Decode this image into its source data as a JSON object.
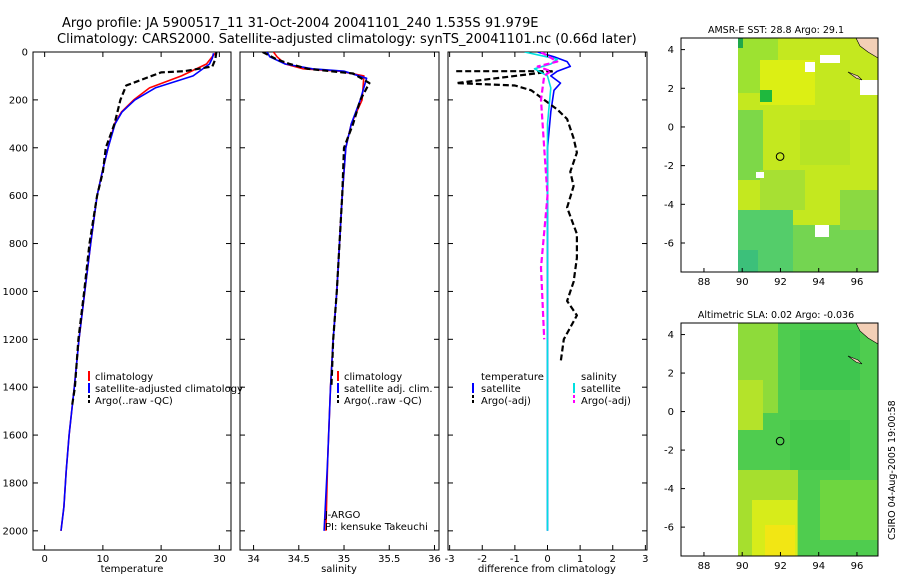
{
  "title_line1": "Argo profile: JA 5900517_11 31-Oct-2004 20041101_240 1.535S 91.979E",
  "title_line2": "Climatology: CARS2000. Satellite-adjusted climatology: synTS_20041101.nc (0.66d later)",
  "side_stamp": "CSIRO 04-Aug-2005 19:00:58",
  "colors": {
    "climatology": "#ff0000",
    "satellite": "#0000ff",
    "argo": "#000000",
    "salinity_cyan": "#00e0e0",
    "salinity_magenta": "#ff00ff"
  },
  "chart_data": [
    {
      "type": "line",
      "title": "",
      "xlabel": "temperature",
      "ylabel": "",
      "xlim": [
        -2,
        32
      ],
      "ylim": [
        2080,
        0
      ],
      "xticks": [
        "0",
        "10",
        "20",
        "30"
      ],
      "xtick_values": [
        0,
        10,
        20,
        30
      ],
      "yticks": [
        "0",
        "200",
        "400",
        "600",
        "800",
        "1000",
        "1200",
        "1400",
        "1600",
        "1800",
        "2000"
      ],
      "ytick_values": [
        0,
        200,
        400,
        600,
        800,
        1000,
        1200,
        1400,
        1600,
        1800,
        2000
      ],
      "legend": {
        "position": "lower-right",
        "entries": [
          "climatology",
          "satellite-adjusted climatology",
          "Argo(..raw -QC)"
        ]
      },
      "series": [
        {
          "name": "climatology",
          "color": "#ff0000",
          "dash": "solid",
          "x": [
            29.3,
            28.6,
            27.8,
            23.5,
            18.0,
            15.3,
            13.2,
            12.0,
            10.9,
            9.9,
            9.0,
            7.9,
            6.9,
            5.9,
            5.1,
            4.2,
            3.7,
            3.3,
            2.8
          ],
          "y": [
            5,
            25,
            50,
            100,
            150,
            200,
            250,
            300,
            400,
            500,
            600,
            800,
            1000,
            1200,
            1400,
            1600,
            1750,
            1900,
            2000
          ]
        },
        {
          "name": "satellite-adjusted climatology",
          "color": "#0000ff",
          "dash": "solid",
          "x": [
            29.0,
            28.8,
            28.3,
            25.5,
            19.0,
            15.5,
            13.3,
            12.1,
            10.9,
            9.9,
            9.0,
            7.9,
            6.9,
            5.9,
            5.1,
            4.2,
            3.7,
            3.3,
            2.8
          ],
          "y": [
            5,
            25,
            50,
            100,
            150,
            200,
            250,
            300,
            400,
            500,
            600,
            800,
            1000,
            1200,
            1400,
            1600,
            1750,
            1900,
            2000
          ]
        },
        {
          "name": "Argo(..raw -QC)",
          "color": "#000000",
          "dash": "dashed",
          "x": [
            29.5,
            29.3,
            28.8,
            24.0,
            20.0,
            14.0,
            13.0,
            12.0,
            10.5,
            10.0,
            9.0,
            7.7,
            6.8,
            5.8,
            5.2,
            4.7
          ],
          "y": [
            0,
            30,
            60,
            80,
            85,
            140,
            200,
            300,
            400,
            500,
            600,
            800,
            1000,
            1200,
            1400,
            1480
          ]
        }
      ]
    },
    {
      "type": "line",
      "title": "",
      "xlabel": "salinity",
      "ylabel": "",
      "xlim": [
        33.85,
        36.05
      ],
      "ylim": [
        2080,
        0
      ],
      "xticks": [
        "34",
        "34.5",
        "35",
        "35.5",
        "36"
      ],
      "xtick_values": [
        34,
        34.5,
        35,
        35.5,
        36
      ],
      "legend": {
        "position": "lower-right",
        "entries": [
          "climatology",
          "satellite adj. clim.",
          "Argo(..raw -QC)"
        ]
      },
      "annotations": [
        "J-ARGO",
        "PI: kensuke Takeuchi"
      ],
      "series": [
        {
          "name": "climatology",
          "color": "#ff0000",
          "dash": "solid",
          "x": [
            34.22,
            34.26,
            34.35,
            34.55,
            34.95,
            35.22,
            35.2,
            35.08,
            35.02,
            35.0,
            34.98,
            34.95,
            34.92,
            34.88,
            34.85,
            34.82,
            34.8
          ],
          "y": [
            0,
            20,
            50,
            70,
            80,
            100,
            200,
            300,
            400,
            500,
            600,
            800,
            1000,
            1200,
            1400,
            1700,
            2000
          ]
        },
        {
          "name": "satellite adj. clim.",
          "color": "#0000ff",
          "dash": "solid",
          "x": [
            34.15,
            34.18,
            34.35,
            34.65,
            35.0,
            35.25,
            35.18,
            35.08,
            35.02,
            35.0,
            34.98,
            34.95,
            34.92,
            34.88,
            34.85,
            34.82,
            34.78
          ],
          "y": [
            0,
            20,
            50,
            70,
            80,
            110,
            200,
            300,
            400,
            500,
            600,
            800,
            1000,
            1200,
            1400,
            1700,
            2000
          ]
        },
        {
          "name": "Argo(..raw -QC)",
          "color": "#000000",
          "dash": "dashed",
          "x": [
            34.1,
            34.25,
            34.4,
            34.6,
            35.1,
            35.28,
            35.18,
            35.1,
            35.0,
            34.98,
            34.95,
            34.92,
            34.88,
            34.86
          ],
          "y": [
            0,
            30,
            50,
            70,
            90,
            130,
            200,
            300,
            400,
            600,
            800,
            1000,
            1200,
            1400
          ]
        }
      ]
    },
    {
      "type": "line",
      "title": "",
      "xlabel": "difference from climatology",
      "ylabel": "",
      "xlim": [
        -3.05,
        3.05
      ],
      "ylim": [
        2080,
        0
      ],
      "xticks": [
        "-3",
        "-2",
        "-1",
        "0",
        "1",
        "2",
        "3"
      ],
      "xtick_values": [
        -3,
        -2,
        -1,
        0,
        1,
        2,
        3
      ],
      "legend": {
        "position": "lower-center",
        "entries": [
          "temperature",
          "satellite",
          "Argo(-adj)",
          "salinity",
          "satellite",
          "Argo(-adj)"
        ]
      },
      "series": [
        {
          "name": "temperature satellite",
          "color": "#0000ff",
          "dash": "solid",
          "x": [
            -0.3,
            0.2,
            0.6,
            0.7,
            0.3,
            0.1,
            0.4,
            0.2,
            0.1,
            0.0,
            0.0,
            0.0,
            0.0,
            0.0,
            0.0
          ],
          "y": [
            0,
            20,
            40,
            60,
            80,
            100,
            130,
            160,
            250,
            400,
            600,
            1000,
            1400,
            1700,
            2000
          ]
        },
        {
          "name": "temperature Argo(-adj)",
          "color": "#000000",
          "dash": "dashed",
          "x": [
            -2.8,
            0.2,
            -2.8,
            -1.0,
            -0.5,
            0.3,
            0.6,
            0.8,
            0.9,
            0.7,
            0.8,
            0.6,
            0.9,
            0.9,
            0.8,
            0.6,
            0.9,
            0.5,
            0.4
          ],
          "y": [
            80,
            80,
            130,
            140,
            160,
            240,
            280,
            360,
            420,
            500,
            560,
            650,
            760,
            860,
            960,
            1040,
            1100,
            1200,
            1300
          ]
        },
        {
          "name": "salinity satellite",
          "color": "#00e0e0",
          "dash": "solid",
          "x": [
            -0.7,
            0.3,
            0.1,
            -0.4,
            0.0,
            0.1,
            0.0,
            0.0,
            0.0,
            0.0,
            0.0
          ],
          "y": [
            0,
            30,
            50,
            70,
            100,
            150,
            300,
            600,
            1000,
            1500,
            2000
          ]
        },
        {
          "name": "salinity Argo(-adj)",
          "color": "#ff00ff",
          "dash": "dashed",
          "x": [
            -0.2,
            0.3,
            -0.3,
            0.1,
            -0.1,
            -0.2,
            -0.1,
            0.0,
            -0.2,
            -0.1
          ],
          "y": [
            0,
            40,
            60,
            80,
            100,
            200,
            400,
            600,
            900,
            1200
          ]
        }
      ]
    },
    {
      "type": "heatmap",
      "title": "AMSR-E SST: 28.8 Argo: 29.1",
      "xlabel": "",
      "ylabel": "",
      "xlim": [
        86.8,
        97.1
      ],
      "ylim": [
        -7.5,
        4.6
      ],
      "xticks": [
        "88",
        "90",
        "92",
        "94",
        "96"
      ],
      "xtick_values": [
        88,
        90,
        92,
        94,
        96
      ],
      "yticks": [
        "4",
        "2",
        "0",
        "-2",
        "-4",
        "-6"
      ],
      "ytick_values": [
        4,
        2,
        0,
        -2,
        -4,
        -6
      ],
      "marker": {
        "lon": 91.979,
        "lat": -1.535
      }
    },
    {
      "type": "heatmap",
      "title": "Altimetric SLA: 0.02 Argo: -0.036",
      "xlabel": "",
      "ylabel": "",
      "xlim": [
        86.8,
        97.1
      ],
      "ylim": [
        -7.5,
        4.6
      ],
      "xticks": [
        "88",
        "90",
        "92",
        "94",
        "96"
      ],
      "xtick_values": [
        88,
        90,
        92,
        94,
        96
      ],
      "yticks": [
        "4",
        "2",
        "0",
        "-2",
        "-4",
        "-6"
      ],
      "ytick_values": [
        4,
        2,
        0,
        -2,
        -4,
        -6
      ],
      "marker": {
        "lon": 91.979,
        "lat": -1.535
      }
    }
  ]
}
